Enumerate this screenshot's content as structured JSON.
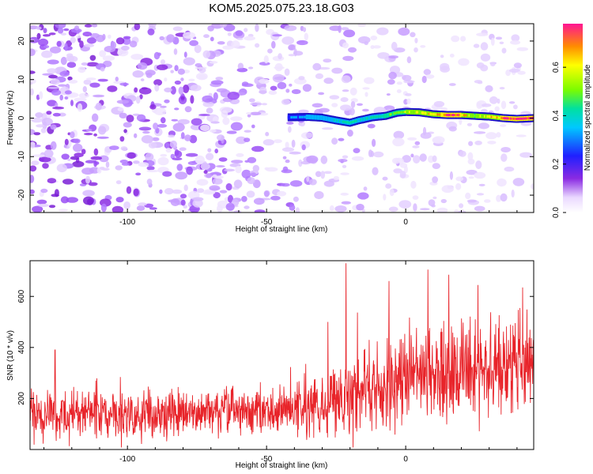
{
  "title": "KOM5.2025.075.23.18.G03",
  "colors": {
    "snr_line": "#e8242a",
    "axis": "#000000",
    "background": "#ffffff"
  },
  "chart_data": [
    {
      "type": "heatmap",
      "title": "KOM5.2025.075.23.18.G03",
      "xlabel": "Height of straight line (km)",
      "ylabel": "Frequency (Hz)",
      "xlim": [
        -135,
        46
      ],
      "ylim": [
        -24.5,
        24.5
      ],
      "x_ticks": [
        -100,
        -50,
        0
      ],
      "y_ticks": [
        -20,
        -10,
        0,
        10,
        20
      ],
      "grid": false,
      "colorbar": {
        "label": "Normalized spectral amplitude",
        "range": [
          0,
          0.78
        ],
        "ticks": [
          0.0,
          0.2,
          0.4,
          0.6
        ],
        "colormap": "rainbow",
        "position": "right"
      },
      "ridge": {
        "description_in_data_units": "high-amplitude narrow band near 0 Hz from about -42 km to 46 km",
        "x": [
          -42,
          -35,
          -30,
          -25,
          -20,
          -17,
          -12,
          -7,
          -3,
          0,
          5,
          10,
          15,
          20,
          25,
          30,
          35,
          40,
          46
        ],
        "freq": [
          0.2,
          0.3,
          0.1,
          -0.6,
          -1.2,
          -0.6,
          0.2,
          0.6,
          1.4,
          1.6,
          1.5,
          1.0,
          0.8,
          0.8,
          0.6,
          0.4,
          0.0,
          -0.2,
          0.0
        ],
        "amplitude": [
          0.22,
          0.28,
          0.3,
          0.35,
          0.4,
          0.34,
          0.38,
          0.42,
          0.5,
          0.55,
          0.6,
          0.65,
          0.72,
          0.7,
          0.55,
          0.62,
          0.7,
          0.74,
          0.78
        ]
      }
    },
    {
      "type": "line",
      "xlabel": "Height of straight line (km)",
      "ylabel": "SNR (10 * v/v)",
      "xlim": [
        -135,
        46
      ],
      "ylim": [
        0,
        740
      ],
      "x_ticks": [
        -100,
        -50,
        0
      ],
      "y_ticks": [
        200,
        400,
        600
      ],
      "grid": false,
      "trend": {
        "x": [
          -135,
          -100,
          -60,
          -35,
          -25,
          -15,
          0,
          15,
          30,
          46
        ],
        "mean": [
          140,
          130,
          150,
          155,
          200,
          230,
          270,
          300,
          320,
          340
        ],
        "spread": [
          70,
          70,
          70,
          80,
          110,
          120,
          130,
          140,
          140,
          140
        ]
      },
      "peaks": [
        {
          "x": -21.5,
          "y": 730
        },
        {
          "x": 8,
          "y": 705
        },
        {
          "x": -6,
          "y": 660
        },
        {
          "x": 26,
          "y": 645
        },
        {
          "x": 42,
          "y": 635
        },
        {
          "x": -28,
          "y": 500
        },
        {
          "x": -126,
          "y": 390
        }
      ]
    }
  ]
}
